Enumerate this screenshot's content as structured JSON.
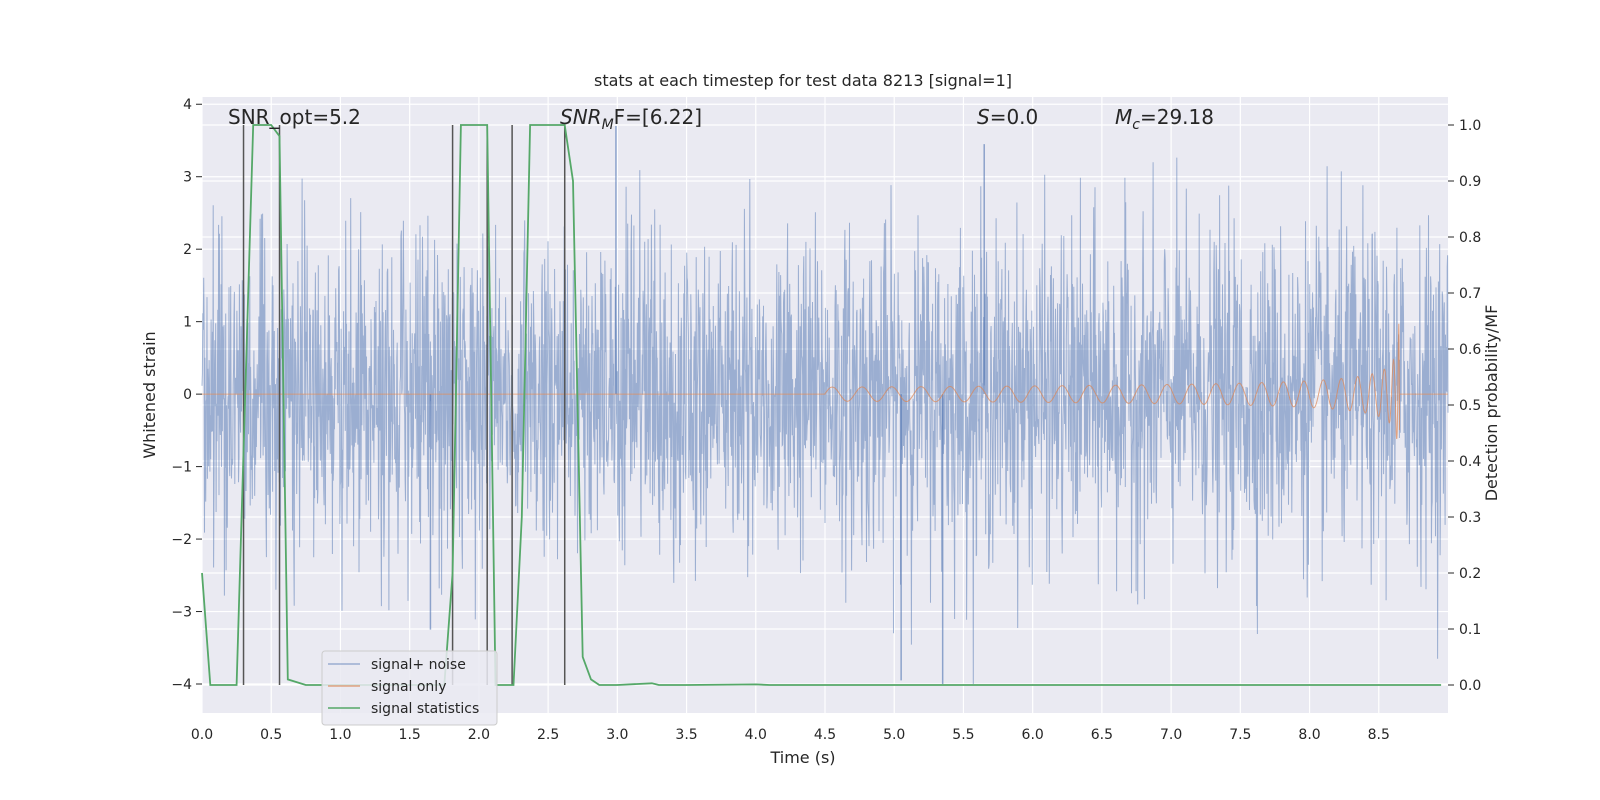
{
  "chart_data": {
    "type": "line",
    "title": "stats at each timestep for test data 8213 [signal=1]",
    "xlabel": "Time (s)",
    "ylabel": "Whitened strain",
    "y2label": "Detection probability/MF",
    "xlim": [
      0,
      9.0
    ],
    "ylim": [
      -4.4,
      4.1
    ],
    "y2lim": [
      -0.05,
      1.05
    ],
    "xticks": [
      0.0,
      0.5,
      1.0,
      1.5,
      2.0,
      2.5,
      3.0,
      3.5,
      4.0,
      4.5,
      5.0,
      5.5,
      6.0,
      6.5,
      7.0,
      7.5,
      8.0,
      8.5
    ],
    "xtick_labels": [
      "0.0",
      "0.5",
      "1.0",
      "1.5",
      "2.0",
      "2.5",
      "3.0",
      "3.5",
      "4.0",
      "4.5",
      "5.0",
      "5.5",
      "6.0",
      "6.5",
      "7.0",
      "7.5",
      "8.0",
      "8.5"
    ],
    "yticks": [
      -4,
      -3,
      -2,
      -1,
      0,
      1,
      2,
      3,
      4
    ],
    "ytick_labels": [
      "−4",
      "−3",
      "−2",
      "−1",
      "0",
      "1",
      "2",
      "3",
      "4"
    ],
    "y2ticks": [
      0.0,
      0.1,
      0.2,
      0.3,
      0.4,
      0.5,
      0.6,
      0.7,
      0.8,
      0.9,
      1.0
    ],
    "y2tick_labels": [
      "0.0",
      "0.1",
      "0.2",
      "0.3",
      "0.4",
      "0.5",
      "0.6",
      "0.7",
      "0.8",
      "0.9",
      "1.0"
    ],
    "grid": true,
    "legend_position": "lower-left",
    "annotations": [
      {
        "text": "SNR_opt=5.2"
      },
      {
        "prefix": "SNR",
        "sub": "M",
        "suffix": "F=[6.22]"
      },
      {
        "prefix": "S",
        "sub": "",
        "suffix": "=0.0"
      },
      {
        "prefix": "M",
        "sub": "c",
        "suffix": "=29.18"
      }
    ],
    "series": [
      {
        "name": "signal+ noise",
        "color": "#4c72b0",
        "axis": "left",
        "description": "whitened noisy strain, amplitude mostly within ±2.5",
        "t_range": [
          0.0,
          9.0
        ],
        "envelope": 1.1,
        "peaks": [
          [
            2.99,
            3.7
          ],
          [
            5.35,
            -4.0
          ],
          [
            5.05,
            -3.95
          ],
          [
            5.65,
            3.45
          ],
          [
            1.65,
            -3.25
          ]
        ]
      },
      {
        "name": "signal only",
        "color": "#dd8452",
        "axis": "left",
        "description": "chirp waveform growing toward merger",
        "t_start": 4.5,
        "t_merger": 8.65,
        "peak_amplitude": 1.1
      },
      {
        "name": "signal statistics",
        "color": "#55a868",
        "axis": "right",
        "x": [
          0.0,
          0.06,
          0.25,
          0.31,
          0.37,
          0.5,
          0.56,
          0.62,
          0.75,
          1.0,
          1.75,
          1.81,
          1.87,
          2.0,
          2.06,
          2.12,
          2.18,
          2.25,
          2.31,
          2.37,
          2.5,
          2.62,
          2.68,
          2.75,
          2.81,
          2.87,
          3.0,
          3.25,
          3.3,
          3.5,
          4.0,
          4.1,
          5.0,
          8.5,
          8.95
        ],
        "values": [
          0.2,
          0.0,
          0.0,
          0.5,
          1.0,
          1.0,
          0.98,
          0.01,
          0.0,
          0.0,
          0.0,
          0.2,
          1.0,
          1.0,
          1.0,
          0.0,
          0.0,
          0.0,
          0.3,
          1.0,
          1.0,
          1.0,
          0.9,
          0.05,
          0.01,
          0.0,
          0.0,
          0.003,
          0.0,
          0.0,
          0.001,
          0.0,
          0.0,
          0.0,
          0.0
        ]
      }
    ],
    "vertical_markers": [
      0.3,
      0.56,
      1.81,
      2.06,
      2.24,
      2.62
    ]
  }
}
